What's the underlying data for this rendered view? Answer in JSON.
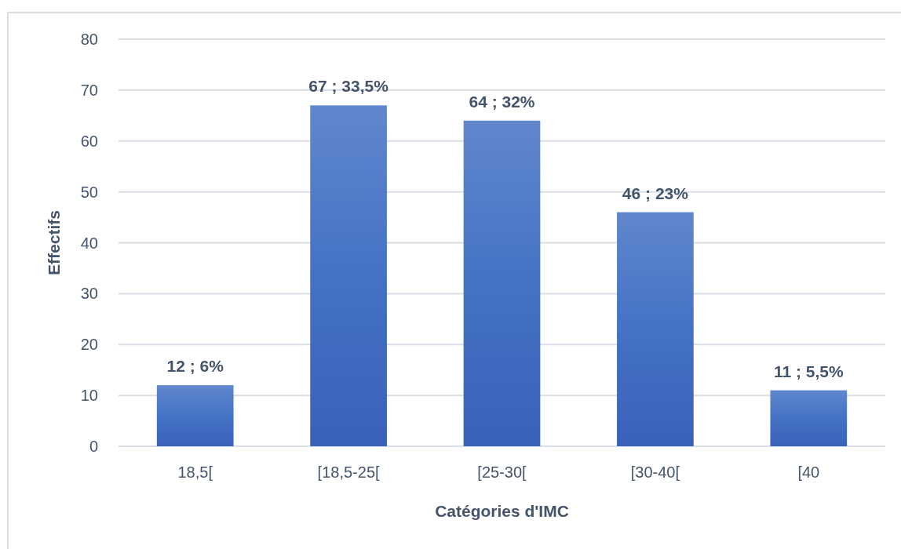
{
  "chart_data": {
    "type": "bar",
    "xlabel": "Catégories d'IMC",
    "ylabel": "Effectifs",
    "categories": [
      "18,5[",
      "[18,5-25[",
      "[25-30[",
      "[30-40[",
      "[40"
    ],
    "values": [
      12,
      67,
      64,
      46,
      11
    ],
    "color": "#4472c4",
    "value_labels": [
      "12 ; 6%",
      "67 ; 33,5%",
      "64 ; 32%",
      "46 ; 23%",
      "11 ; 5,5%"
    ],
    "ylim": [
      0,
      80
    ],
    "yticks": [
      0,
      10,
      20,
      30,
      40,
      50,
      60,
      70,
      80
    ],
    "grid": "y"
  }
}
